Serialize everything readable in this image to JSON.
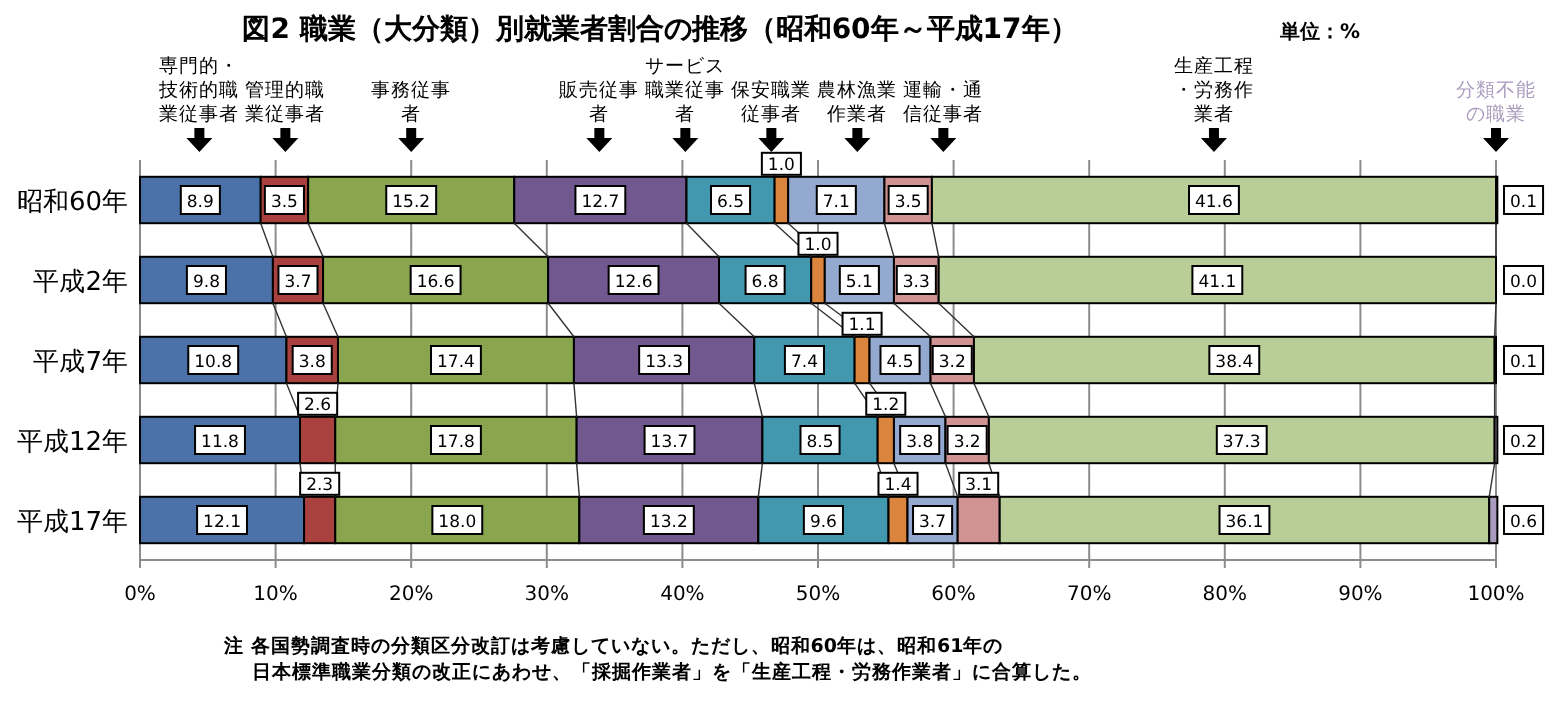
{
  "chart_data": {
    "type": "bar",
    "orientation": "horizontal",
    "stacked": true,
    "title": "図2 職業（大分類）別就業者割合の推移（昭和60年～平成17年）",
    "annotations": [
      "単位：%",
      "注 各国勢調査時の分類区分改訂は考慮していない。ただし、昭和60年は、昭和61年の",
      "日本標準職業分類の改正にあわせ、「採掘作業者」を「生産工程・労務作業者」に合算した。"
    ],
    "categories": [
      "昭和60年",
      "平成2年",
      "平成7年",
      "平成12年",
      "平成17年"
    ],
    "xlim": [
      0,
      100
    ],
    "xticks": [
      {
        "value": 0,
        "label": "0%"
      },
      {
        "value": 10,
        "label": "10%"
      },
      {
        "value": 20,
        "label": "20%"
      },
      {
        "value": 30,
        "label": "30%"
      },
      {
        "value": 40,
        "label": "40%"
      },
      {
        "value": 50,
        "label": "50%"
      },
      {
        "value": 60,
        "label": "60%"
      },
      {
        "value": 70,
        "label": "70%"
      },
      {
        "value": 80,
        "label": "80%"
      },
      {
        "value": 90,
        "label": "90%"
      },
      {
        "value": 100,
        "label": "100%"
      }
    ],
    "grid": "x",
    "series": [
      {
        "name": "専門的・技術的職業従事者",
        "color": "#4a72a8",
        "values": [
          8.9,
          9.8,
          10.8,
          11.8,
          12.1
        ],
        "value_labels": [
          "8.9",
          "9.8",
          "10.8",
          "11.8",
          "12.1"
        ]
      },
      {
        "name": "管理的職業従事者",
        "color": "#a9423f",
        "values": [
          3.5,
          3.7,
          3.8,
          2.6,
          2.3
        ],
        "value_labels": [
          "3.5",
          "3.7",
          "3.8",
          "2.6",
          "2.3"
        ]
      },
      {
        "name": "事務従事者",
        "color": "#89a54e",
        "values": [
          15.2,
          16.6,
          17.4,
          17.8,
          18.0
        ],
        "value_labels": [
          "15.2",
          "16.6",
          "17.4",
          "17.8",
          "18.0"
        ]
      },
      {
        "name": "販売従事者",
        "color": "#71588f",
        "values": [
          12.7,
          12.6,
          13.3,
          13.7,
          13.2
        ],
        "value_labels": [
          "12.7",
          "12.6",
          "13.3",
          "13.7",
          "13.2"
        ]
      },
      {
        "name": "サービス職業従事者",
        "color": "#4198af",
        "values": [
          6.5,
          6.8,
          7.4,
          8.5,
          9.6
        ],
        "value_labels": [
          "6.5",
          "6.8",
          "7.4",
          "8.5",
          "9.6"
        ]
      },
      {
        "name": "保安職業従事者",
        "color": "#db843d",
        "values": [
          1.0,
          1.0,
          1.1,
          1.2,
          1.4
        ],
        "value_labels": [
          "1.0",
          "1.0",
          "1.1",
          "1.2",
          "1.4"
        ]
      },
      {
        "name": "農林漁業作業者",
        "color": "#93a9cf",
        "values": [
          7.1,
          5.1,
          4.5,
          3.8,
          3.7
        ],
        "value_labels": [
          "7.1",
          "5.1",
          "4.5",
          "3.8",
          "3.7"
        ]
      },
      {
        "name": "運輸・通信従事者",
        "color": "#d09392",
        "values": [
          3.5,
          3.3,
          3.2,
          3.2,
          3.1
        ],
        "value_labels": [
          "3.5",
          "3.3",
          "3.2",
          "3.2",
          "3.1"
        ]
      },
      {
        "name": "生産工程・労務作業者",
        "color": "#b9cd96",
        "values": [
          41.6,
          41.1,
          38.4,
          37.3,
          36.1
        ],
        "value_labels": [
          "41.6",
          "41.1",
          "38.4",
          "37.3",
          "36.1"
        ]
      },
      {
        "name": "分類不能の職業",
        "color": "#a99bbd",
        "values": [
          0.1,
          0.0,
          0.1,
          0.2,
          0.6
        ],
        "value_labels": [
          "0.1",
          "0.0",
          "0.1",
          "0.2",
          "0.6"
        ]
      }
    ]
  }
}
